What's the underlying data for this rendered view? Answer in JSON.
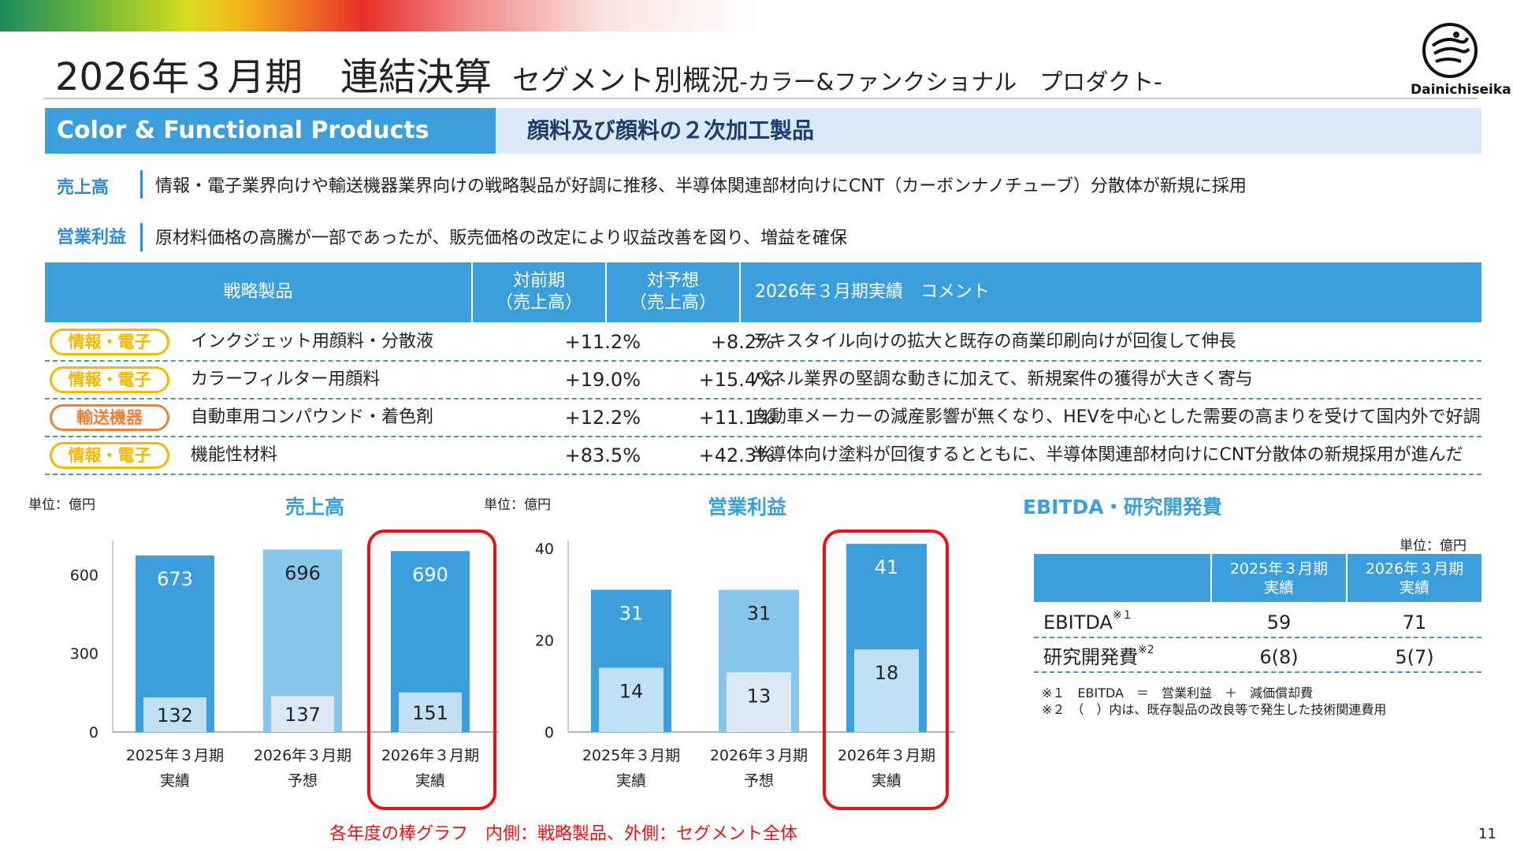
{
  "title": {
    "main": "2026年３月期　連結決算",
    "sub": "セグメント別概況",
    "sub2": "-カラー&ファンクショナル　プロダクト-"
  },
  "logo": {
    "name": "Dainichiseika"
  },
  "segment": {
    "en": "Color & Functional Products",
    "jp": "顔料及び顔料の２次加工製品"
  },
  "summary": [
    {
      "label": "売上高",
      "text": "情報・電子業界向けや輸送機器業界向けの戦略製品が好調に推移、半導体関連部材向けにCNT（カーボンナノチューブ）分散体が新規に採用"
    },
    {
      "label": "営業利益",
      "text": "原材料価格の高騰が一部であったが、販売価格の改定により収益改善を図り、増益を確保"
    }
  ],
  "products_table": {
    "headers": [
      "戦略製品",
      "対前期\n（売上高）",
      "対予想\n（売上高）",
      "2026年３月期実績　コメント"
    ],
    "rows": [
      {
        "tag": "情報・電子",
        "tag_color": "#f5b800",
        "product": "インクジェット用顔料・分散液",
        "yoy": "+11.2%",
        "vs_forecast": "+8.2%",
        "comment": "テキスタイル向けの拡大と既存の商業印刷向けが回復して伸長"
      },
      {
        "tag": "情報・電子",
        "tag_color": "#f5b800",
        "product": "カラーフィルター用顔料",
        "yoy": "+19.0%",
        "vs_forecast": "+15.4%",
        "comment": "パネル業界の堅調な動きに加えて、新規案件の獲得が大きく寄与"
      },
      {
        "tag": "輸送機器",
        "tag_color": "#e8823a",
        "product": "自動車用コンパウンド・着色剤",
        "yoy": "+12.2%",
        "vs_forecast": "+11.1%",
        "comment": "自動車メーカーの減産影響が無くなり、HEVを中心とした需要の高まりを受けて国内外で好調"
      },
      {
        "tag": "情報・電子",
        "tag_color": "#f5b800",
        "product": "機能性材料",
        "yoy": "+83.5%",
        "vs_forecast": "+42.3%",
        "comment": "半導体向け塗料が回復するとともに、半導体関連部材向けにCNT分散体の新規採用が進んだ"
      }
    ]
  },
  "chart_data": [
    {
      "type": "bar",
      "title": "売上高",
      "unit": "単位：億円",
      "categories": [
        "2025年３月期\n実績",
        "2026年３月期\n予想",
        "2026年３月期\n実績"
      ],
      "series": [
        {
          "name": "セグメント全体",
          "values": [
            673,
            696,
            690
          ]
        },
        {
          "name": "戦略製品",
          "values": [
            132,
            137,
            151
          ]
        }
      ],
      "yticks": [
        0,
        300,
        600
      ],
      "ylim": [
        0,
        700
      ],
      "highlight_index": 2,
      "colors": {
        "outer": [
          "#3a9fdc",
          "#88c6ec",
          "#3a9fdc"
        ],
        "inner": [
          "#c2e0f4",
          "#dde9f5",
          "#c2e0f4"
        ]
      }
    },
    {
      "type": "bar",
      "title": "営業利益",
      "unit": "単位：億円",
      "categories": [
        "2025年３月期\n実績",
        "2026年３月期\n予想",
        "2026年３月期\n実績"
      ],
      "series": [
        {
          "name": "セグメント全体",
          "values": [
            31,
            31,
            41
          ]
        },
        {
          "name": "戦略製品",
          "values": [
            14,
            13,
            18
          ]
        }
      ],
      "yticks": [
        0,
        20,
        40
      ],
      "ylim": [
        0,
        40
      ],
      "highlight_index": 2,
      "colors": {
        "outer": [
          "#3a9fdc",
          "#88c6ec",
          "#3a9fdc"
        ],
        "inner": [
          "#c2e0f4",
          "#dde9f5",
          "#c2e0f4"
        ]
      }
    }
  ],
  "chart_note": "各年度の棒グラフ　内側：戦略製品、外側：セグメント全体",
  "ebitda": {
    "title": "EBITDA・研究開発費",
    "unit": "単位：億円",
    "headers": [
      "2025年３月期\n実績",
      "2026年３月期\n実績"
    ],
    "rows": [
      {
        "label": "EBITDA",
        "note": "※１",
        "v2025": "59",
        "v2026": "71"
      },
      {
        "label": "研究開発費",
        "note": "※2",
        "v2025": "6(8)",
        "v2026": "5(7)"
      }
    ],
    "footnotes": [
      "※１　EBITDA　＝　営業利益　＋　減価償却費",
      "※２　（　）内は、既存製品の改良等で発生した技術関連費用"
    ]
  },
  "page_number": "11",
  "colors": {
    "accent": "#3a9fdc",
    "highlight": "#ee1111",
    "label_blue": "#2e8bd0"
  }
}
